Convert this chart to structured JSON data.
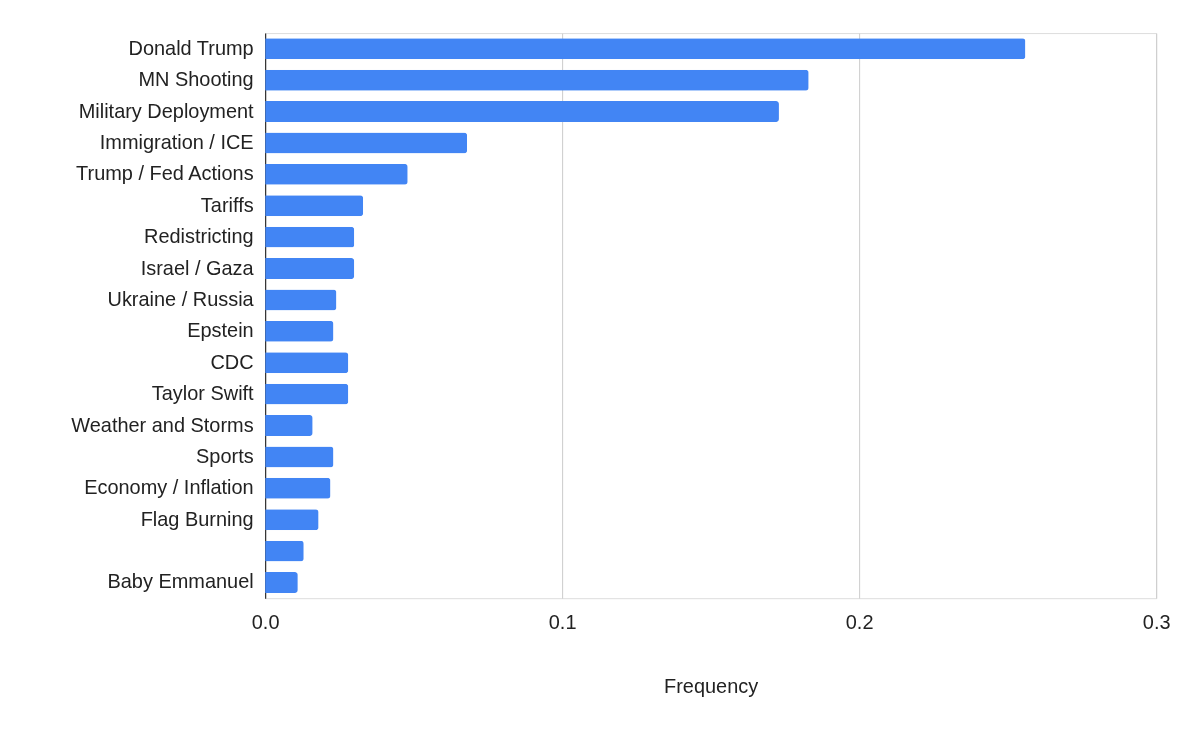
{
  "chart_data": {
    "type": "bar",
    "orientation": "horizontal",
    "xlabel": "Frequency",
    "categories": [
      "Donald Trump",
      "MN Shooting",
      "Military Deployment",
      "Immigration / ICE",
      "Trump / Fed Actions",
      "Tariffs",
      "Redistricting",
      "Israel / Gaza",
      "Ukraine / Russia",
      "Epstein",
      "CDC",
      "Taylor Swift",
      "Weather and Storms",
      "Sports",
      "Economy / Inflation",
      "Flag Burning",
      null,
      "Baby Emmanuel"
    ],
    "values": [
      0.256,
      0.183,
      0.173,
      0.068,
      0.048,
      0.033,
      0.03,
      0.03,
      0.024,
      0.023,
      0.028,
      0.028,
      0.016,
      0.023,
      0.022,
      0.018,
      0.013,
      0.011
    ],
    "color": "#4285f4",
    "xlim": [
      0,
      0.3
    ],
    "xticks": [
      {
        "value": 0,
        "label": "0.0"
      },
      0.1,
      0.2,
      0.3
    ],
    "grid": "x"
  }
}
